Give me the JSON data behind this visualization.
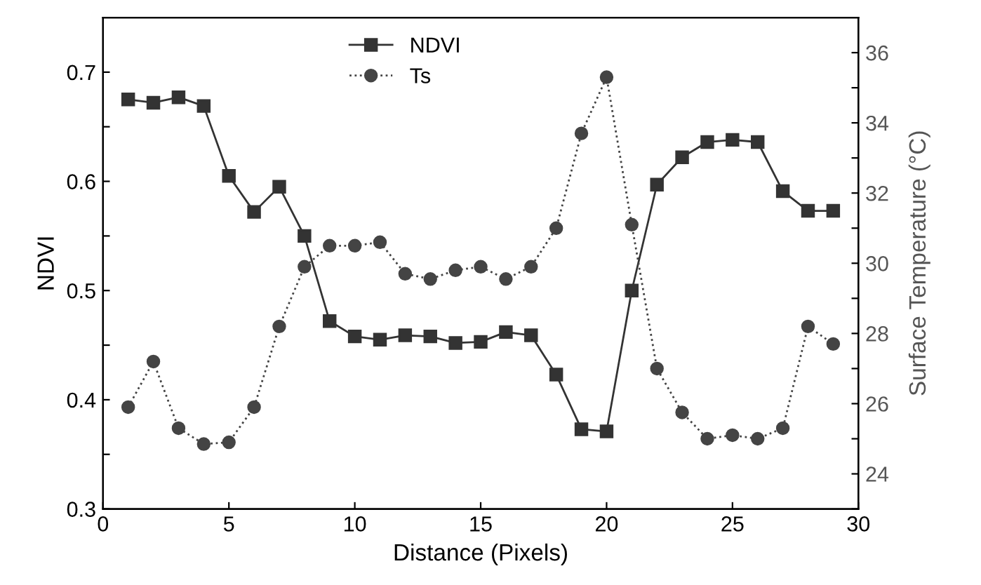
{
  "chart_data": {
    "type": "line",
    "xlabel": "Distance (Pixels)",
    "ylabel": "NDVI",
    "y2label": "Surface Temperature (°C)",
    "x": [
      1,
      2,
      3,
      4,
      5,
      6,
      7,
      8,
      9,
      10,
      11,
      12,
      13,
      14,
      15,
      16,
      17,
      18,
      19,
      20,
      21,
      22,
      23,
      24,
      25,
      26,
      27,
      28,
      29
    ],
    "series": [
      {
        "name": "NDVI",
        "color": "#333333",
        "marker": "square",
        "line_style": "solid",
        "values": [
          0.675,
          0.672,
          0.677,
          0.669,
          0.605,
          0.572,
          0.595,
          0.55,
          0.472,
          0.458,
          0.455,
          0.459,
          0.458,
          0.452,
          0.453,
          0.462,
          0.459,
          0.423,
          0.373,
          0.371,
          0.5,
          0.597,
          0.622,
          0.636,
          0.638,
          0.636,
          0.591,
          0.573,
          0.573
        ]
      },
      {
        "name": "Ts",
        "color": "#444444",
        "marker": "circle",
        "line_style": "dotted",
        "axis": "y2",
        "values": [
          25.9,
          27.2,
          25.3,
          24.85,
          24.9,
          25.9,
          28.2,
          29.9,
          30.5,
          30.5,
          30.6,
          29.7,
          29.55,
          29.8,
          29.9,
          29.55,
          29.9,
          31.0,
          33.7,
          35.3,
          31.1,
          27.0,
          25.75,
          25.0,
          25.1,
          25.0,
          25.3,
          28.2,
          27.7
        ]
      }
    ],
    "xlim": [
      0,
      30
    ],
    "xticks": [
      0,
      5,
      10,
      15,
      20,
      25,
      30
    ],
    "ylim": [
      0.3,
      0.75
    ],
    "yticks": [
      0.3,
      {
        "value": 0.35,
        "label": null
      },
      0.4,
      {
        "value": 0.45,
        "label": null
      },
      0.5,
      {
        "value": 0.55,
        "label": null
      },
      0.6,
      {
        "value": 0.65,
        "label": null
      },
      0.7
    ],
    "y2lim": [
      23,
      37
    ],
    "y2ticks": [
      {
        "value": 23,
        "label": null
      },
      24,
      {
        "value": 25,
        "label": null
      },
      26,
      {
        "value": 27,
        "label": null
      },
      28,
      {
        "value": 29,
        "label": null
      },
      30,
      {
        "value": 31,
        "label": null
      },
      32,
      {
        "value": 33,
        "label": null
      },
      34,
      {
        "value": 35,
        "label": null
      },
      36
    ],
    "legend": "top center",
    "grid": false
  }
}
